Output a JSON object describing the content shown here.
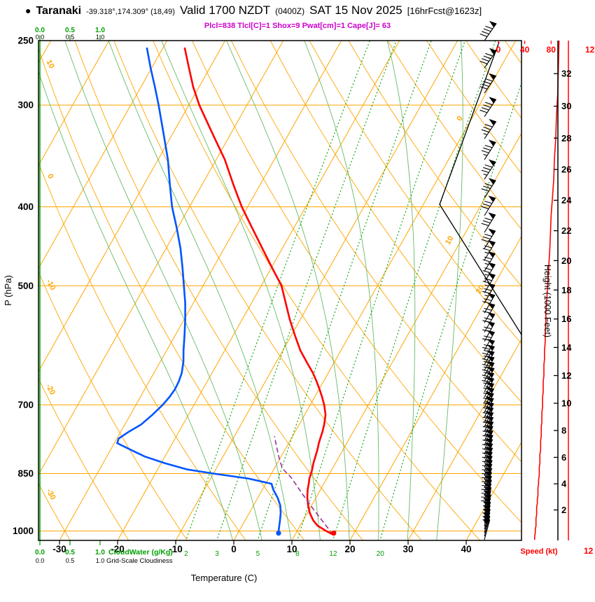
{
  "header": {
    "bullet": "●",
    "station": "Taranaki",
    "coords": "-39.318°,174.309° (18,49)",
    "valid": "Valid 1700 NZDT",
    "valid_z": "(0400Z)",
    "date": "SAT 15 Nov 2025",
    "fcst": "[16hrFcst@1623z]",
    "params": "Plcl=838 Tlcl[C]=1 Shox=9 Pwat[cm]=1 Cape[J]= 63"
  },
  "axes": {
    "pressure_label": "P (hPa)",
    "pressure_ticks": [
      250,
      300,
      400,
      500,
      700,
      850,
      1000
    ],
    "temp_label": "Temperature (C)",
    "temp_ticks": [
      -30,
      -20,
      -10,
      0,
      10,
      20,
      30,
      40
    ],
    "height_label": "Height (1000 Feet)",
    "height_ticks": [
      2,
      4,
      6,
      8,
      10,
      12,
      14,
      16,
      18,
      20,
      22,
      24,
      26,
      28,
      30,
      32
    ],
    "speed_label": "Speed (kt)",
    "speed_ticks_top": [
      "0",
      "40",
      "80",
      "12"
    ],
    "speed_tick_bottom_right": "12",
    "isotherm_labels": [
      0,
      10,
      20,
      30
    ],
    "theta_labels": [
      10,
      0,
      -10,
      -20,
      -30
    ],
    "mixratio_labels": [
      2,
      3,
      5,
      8,
      12,
      20
    ],
    "cloudwater_scale": [
      "0.0",
      "0.5",
      "1.0"
    ],
    "cloudiness_scale": [
      "0.0",
      "0.5",
      "1.0"
    ],
    "cloudwater_label": "CloudWater (g/Kg)",
    "cloudiness_label": "Grid-Scale Cloudiness"
  },
  "chart_data": {
    "type": "skewt",
    "title": "Taranaki sounding valid 1700 NZDT (0400Z) SAT 15 Nov 2025, 16hr forecast",
    "pressure_range_hpa": [
      250,
      1030
    ],
    "temp_axis_range_c": [
      -30,
      40
    ],
    "indices": {
      "Plcl": 838,
      "Tlcl_C": 1,
      "Showalter": 9,
      "Pwat_cm": 1,
      "Cape_J": 63
    },
    "levels_format": "[pressure_hPa, temperature_C, dewpoint_C]",
    "levels": [
      [
        1010,
        16.5,
        7.0
      ],
      [
        1000,
        15.0,
        6.8
      ],
      [
        985,
        13.0,
        6.4
      ],
      [
        970,
        11.7,
        6.0
      ],
      [
        950,
        10.4,
        5.4
      ],
      [
        930,
        9.4,
        4.6
      ],
      [
        910,
        8.5,
        3.4
      ],
      [
        890,
        7.8,
        1.9
      ],
      [
        875,
        7.4,
        1.0
      ],
      [
        862,
        7.0,
        -3.5
      ],
      [
        850,
        6.8,
        -10.0
      ],
      [
        840,
        6.6,
        -15.0
      ],
      [
        825,
        6.2,
        -19.5
      ],
      [
        810,
        5.9,
        -23.5
      ],
      [
        795,
        5.6,
        -26.5
      ],
      [
        780,
        5.2,
        -29.5
      ],
      [
        770,
        5.0,
        -29.7
      ],
      [
        755,
        4.7,
        -28.6
      ],
      [
        740,
        4.3,
        -27.2
      ],
      [
        720,
        3.6,
        -26.2
      ],
      [
        700,
        2.4,
        -25.4
      ],
      [
        685,
        1.3,
        -25.0
      ],
      [
        670,
        0.1,
        -24.8
      ],
      [
        655,
        -1.2,
        -24.9
      ],
      [
        640,
        -2.6,
        -25.2
      ],
      [
        620,
        -4.8,
        -26.0
      ],
      [
        600,
        -7.0,
        -27.1
      ],
      [
        575,
        -9.4,
        -28.4
      ],
      [
        550,
        -11.8,
        -29.8
      ],
      [
        525,
        -14.1,
        -31.4
      ],
      [
        500,
        -16.5,
        -33.3
      ],
      [
        475,
        -19.9,
        -35.3
      ],
      [
        450,
        -23.4,
        -37.5
      ],
      [
        425,
        -27.1,
        -40.1
      ],
      [
        400,
        -31.0,
        -43.0
      ],
      [
        375,
        -34.7,
        -45.6
      ],
      [
        350,
        -38.5,
        -48.3
      ],
      [
        325,
        -43.2,
        -51.6
      ],
      [
        300,
        -48.2,
        -55.2
      ],
      [
        285,
        -51.0,
        -57.6
      ],
      [
        270,
        -53.6,
        -60.2
      ],
      [
        255,
        -56.3,
        -62.8
      ]
    ],
    "parcel_format": "[pressure_hPa, temperature_C]",
    "parcel": [
      [
        1010,
        16.5
      ],
      [
        970,
        13.2
      ],
      [
        930,
        9.8
      ],
      [
        890,
        6.4
      ],
      [
        860,
        3.8
      ],
      [
        838,
        1.4
      ],
      [
        820,
        0.2
      ],
      [
        800,
        -1.0
      ],
      [
        780,
        -2.2
      ],
      [
        765,
        -3.1
      ]
    ],
    "surface_dots": {
      "temp": {
        "p": 1006,
        "T": 16.5
      },
      "dewpt": {
        "p": 1006,
        "Td": 7.0
      }
    },
    "wind_format": "[pressure_hPa, speed_kt, direction_deg]",
    "wind": [
      [
        1025,
        55,
        15
      ],
      [
        1015,
        55,
        15
      ],
      [
        1005,
        56,
        15
      ],
      [
        995,
        56,
        16
      ],
      [
        985,
        57,
        16
      ],
      [
        975,
        57,
        17
      ],
      [
        965,
        57,
        17
      ],
      [
        955,
        58,
        18
      ],
      [
        945,
        58,
        18
      ],
      [
        935,
        58,
        19
      ],
      [
        925,
        59,
        19
      ],
      [
        915,
        59,
        20
      ],
      [
        905,
        60,
        20
      ],
      [
        895,
        60,
        20
      ],
      [
        885,
        60,
        21
      ],
      [
        875,
        61,
        21
      ],
      [
        865,
        61,
        22
      ],
      [
        855,
        62,
        22
      ],
      [
        845,
        62,
        22
      ],
      [
        835,
        62,
        23
      ],
      [
        825,
        63,
        23
      ],
      [
        815,
        63,
        23
      ],
      [
        805,
        63,
        24
      ],
      [
        795,
        64,
        24
      ],
      [
        785,
        64,
        24
      ],
      [
        775,
        64,
        25
      ],
      [
        765,
        65,
        25
      ],
      [
        755,
        65,
        25
      ],
      [
        745,
        65,
        25
      ],
      [
        735,
        66,
        26
      ],
      [
        725,
        66,
        26
      ],
      [
        715,
        66,
        26
      ],
      [
        705,
        67,
        27
      ],
      [
        695,
        67,
        27
      ],
      [
        685,
        67,
        27
      ],
      [
        675,
        68,
        27
      ],
      [
        665,
        68,
        28
      ],
      [
        655,
        68,
        28
      ],
      [
        645,
        69,
        28
      ],
      [
        635,
        69,
        28
      ],
      [
        625,
        69,
        29
      ],
      [
        615,
        70,
        29
      ],
      [
        600,
        70,
        29
      ],
      [
        585,
        71,
        29
      ],
      [
        570,
        71,
        30
      ],
      [
        555,
        72,
        30
      ],
      [
        540,
        72,
        30
      ],
      [
        525,
        73,
        30
      ],
      [
        510,
        74,
        31
      ],
      [
        495,
        75,
        31
      ],
      [
        480,
        76,
        31
      ],
      [
        465,
        77,
        31
      ],
      [
        450,
        78,
        32
      ],
      [
        430,
        79,
        32
      ],
      [
        410,
        80,
        32
      ],
      [
        390,
        82,
        33
      ],
      [
        370,
        84,
        33
      ],
      [
        350,
        85,
        33
      ],
      [
        330,
        87,
        34
      ],
      [
        310,
        88,
        34
      ],
      [
        290,
        90,
        34
      ],
      [
        270,
        91,
        35
      ],
      [
        250,
        92,
        35
      ]
    ],
    "moist_adiabats_c": [
      0,
      5,
      10,
      15,
      20,
      25,
      30,
      35
    ],
    "colors": {
      "grid_orange": "#FFA500",
      "mixratio_green": "#00A000",
      "moist_green": "#66BB66",
      "cloudwater_green": "#00A000",
      "temp_red": "#FF0000",
      "dewpt_blue": "#0055FF",
      "parcel_purple": "#993399",
      "params_magenta": "#CC00CC",
      "speed_red": "#FF0000",
      "axis_black": "#000000"
    }
  }
}
